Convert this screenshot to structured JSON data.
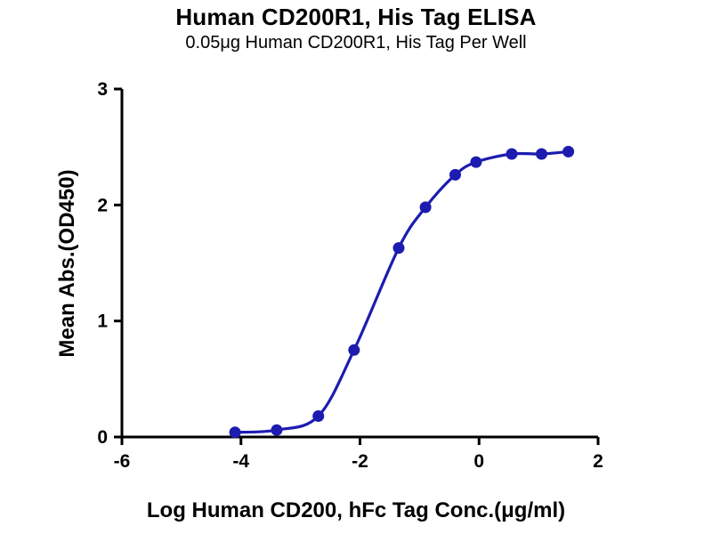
{
  "chart_data": {
    "type": "scatter",
    "title": "Human CD200R1, His Tag ELISA",
    "subtitle": "0.05μg Human CD200R1, His Tag Per Well",
    "xlabel": "Log Human CD200, hFc Tag Conc.(μg/ml)",
    "ylabel": "Mean Abs.(OD450)",
    "xlim": [
      -6,
      2
    ],
    "ylim": [
      0,
      3
    ],
    "xticks": [
      -6,
      -4,
      -2,
      0,
      2
    ],
    "yticks": [
      0,
      1,
      2,
      3
    ],
    "grid": false,
    "legend": false,
    "color": "#1c1cb0",
    "axis_color": "#000000",
    "series": [
      {
        "x": [
          -4.1,
          -3.4,
          -2.7,
          -2.1,
          -1.35,
          -0.9,
          -0.4,
          -0.05,
          0.55,
          1.05,
          1.5
        ],
        "y": [
          0.04,
          0.06,
          0.18,
          0.75,
          1.63,
          1.98,
          2.26,
          2.37,
          2.44,
          2.44,
          2.46
        ],
        "fit": "sigmoidal-4PL"
      }
    ]
  }
}
